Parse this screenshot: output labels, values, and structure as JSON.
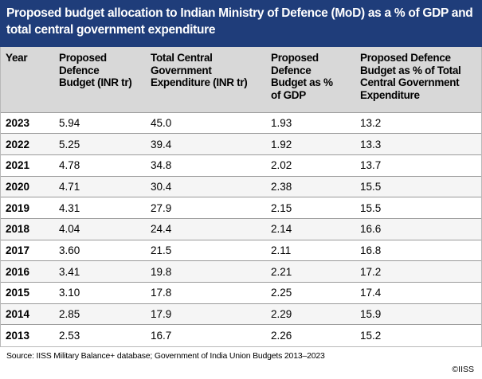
{
  "title": "Proposed budget allocation to Indian Ministry of Defence (MoD) as a % of GDP and total central government expenditure",
  "table": {
    "headers": [
      "Year",
      "Proposed Defence Budget (INR tr)",
      "Total Central Government Expenditure (INR tr)",
      "Proposed Defence Budget as % of GDP",
      "Proposed Defence Budget as % of Total Central Government Expenditure"
    ],
    "rows": [
      [
        "2023",
        "5.94",
        "45.0",
        "1.93",
        "13.2"
      ],
      [
        "2022",
        "5.25",
        "39.4",
        "1.92",
        "13.3"
      ],
      [
        "2021",
        "4.78",
        "34.8",
        "2.02",
        "13.7"
      ],
      [
        "2020",
        "4.71",
        "30.4",
        "2.38",
        "15.5"
      ],
      [
        "2019",
        "4.31",
        "27.9",
        "2.15",
        "15.5"
      ],
      [
        "2018",
        "4.04",
        "24.4",
        "2.14",
        "16.6"
      ],
      [
        "2017",
        "3.60",
        "21.5",
        "2.11",
        "16.8"
      ],
      [
        "2016",
        "3.41",
        "19.8",
        "2.21",
        "17.2"
      ],
      [
        "2015",
        "3.10",
        "17.8",
        "2.25",
        "17.4"
      ],
      [
        "2014",
        "2.85",
        "17.9",
        "2.29",
        "15.9"
      ],
      [
        "2013",
        "2.53",
        "16.7",
        "2.26",
        "15.2"
      ]
    ]
  },
  "source": "Source: IISS Military Balance+ database; Government of India Union Budgets 2013–2023",
  "copyright": "©IISS",
  "colors": {
    "title_background": "#1f3d7a",
    "header_background": "#d8d8d8"
  }
}
